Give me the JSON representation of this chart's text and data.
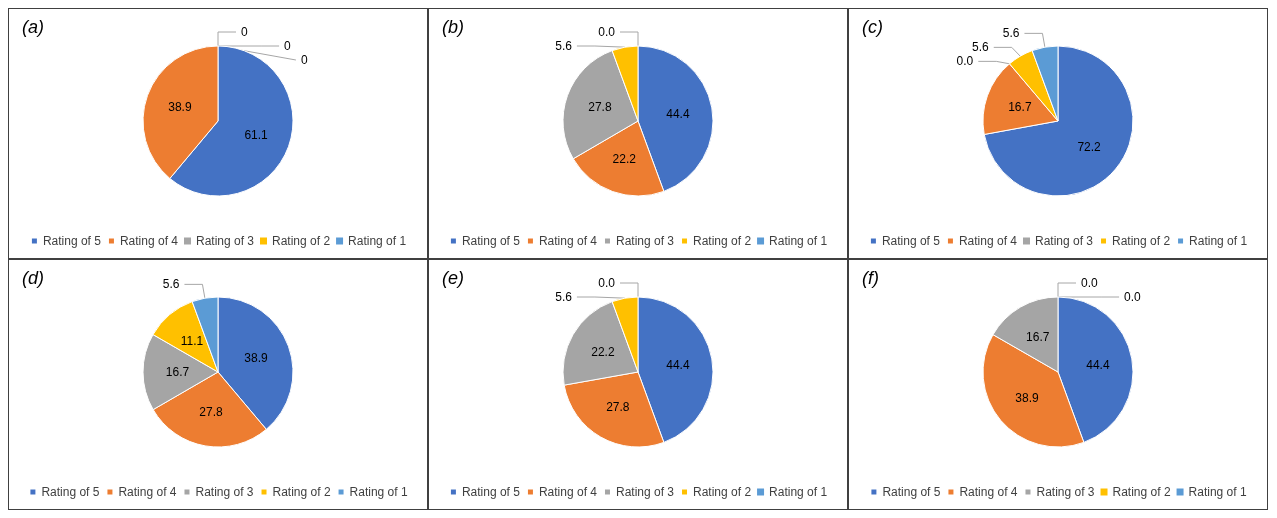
{
  "chart_data": [
    {
      "type": "pie",
      "title": "(a)",
      "categories": [
        "Rating of 5",
        "Rating of 4",
        "Rating of 3",
        "Rating of 2",
        "Rating of 1"
      ],
      "values": [
        61.1,
        38.9,
        0,
        0,
        0
      ],
      "value_labels": [
        "61.1",
        "38.9",
        "0",
        "0",
        "0"
      ],
      "colors": [
        "#4472c4",
        "#ed7d31",
        "#a5a5a5",
        "#ffc000",
        "#5b9bd5"
      ],
      "legend": "bottom"
    },
    {
      "type": "pie",
      "title": "(b)",
      "categories": [
        "Rating of 5",
        "Rating of 4",
        "Rating of 3",
        "Rating of 2",
        "Rating of 1"
      ],
      "values": [
        44.4,
        22.2,
        27.8,
        5.6,
        0.0
      ],
      "value_labels": [
        "44.4",
        "22.2",
        "27.8",
        "5.6",
        "0.0"
      ],
      "colors": [
        "#4472c4",
        "#ed7d31",
        "#a5a5a5",
        "#ffc000",
        "#5b9bd5"
      ],
      "legend": "bottom"
    },
    {
      "type": "pie",
      "title": "(c)",
      "categories": [
        "Rating of 5",
        "Rating of 4",
        "Rating of 3",
        "Rating of 2",
        "Rating of 1"
      ],
      "values": [
        72.2,
        16.7,
        0.0,
        5.6,
        5.6
      ],
      "value_labels": [
        "72.2",
        "16.7",
        "0.0",
        "5.6",
        "5.6"
      ],
      "colors": [
        "#4472c4",
        "#ed7d31",
        "#a5a5a5",
        "#ffc000",
        "#5b9bd5"
      ],
      "legend": "bottom"
    },
    {
      "type": "pie",
      "title": "(d)",
      "categories": [
        "Rating of 5",
        "Rating of 4",
        "Rating of 3",
        "Rating of 2",
        "Rating of 1"
      ],
      "values": [
        38.9,
        27.8,
        16.7,
        11.1,
        5.6
      ],
      "value_labels": [
        "38.9",
        "27.8",
        "16.7",
        "11.1",
        "5.6"
      ],
      "colors": [
        "#4472c4",
        "#ed7d31",
        "#a5a5a5",
        "#ffc000",
        "#5b9bd5"
      ],
      "legend": "bottom"
    },
    {
      "type": "pie",
      "title": "(e)",
      "categories": [
        "Rating of 5",
        "Rating of 4",
        "Rating of 3",
        "Rating of 2",
        "Rating of 1"
      ],
      "values": [
        44.4,
        27.8,
        22.2,
        5.6,
        0.0
      ],
      "value_labels": [
        "44.4",
        "27.8",
        "22.2",
        "5.6",
        "0.0"
      ],
      "colors": [
        "#4472c4",
        "#ed7d31",
        "#a5a5a5",
        "#ffc000",
        "#5b9bd5"
      ],
      "legend": "bottom"
    },
    {
      "type": "pie",
      "title": "(f)",
      "categories": [
        "Rating of 5",
        "Rating of 4",
        "Rating of 3",
        "Rating of 2",
        "Rating of 1"
      ],
      "values": [
        44.4,
        38.9,
        16.7,
        0.0,
        0.0
      ],
      "value_labels": [
        "44.4",
        "38.9",
        "16.7",
        "0.0",
        "0.0"
      ],
      "colors": [
        "#4472c4",
        "#ed7d31",
        "#a5a5a5",
        "#ffc000",
        "#5b9bd5"
      ],
      "legend": "bottom"
    }
  ]
}
